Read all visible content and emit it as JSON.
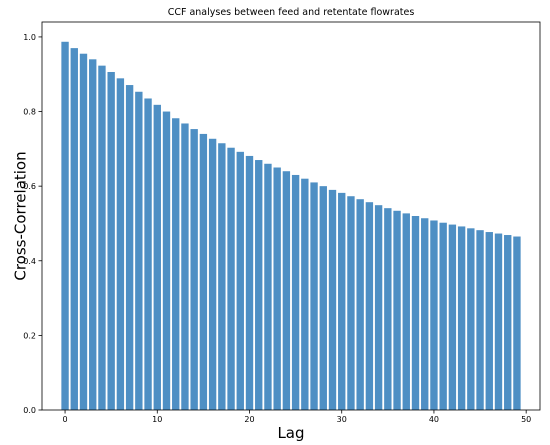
{
  "chart_data": {
    "type": "bar",
    "title": "CCF analyses between feed and retentate flowrates",
    "xlabel": "Lag",
    "ylabel": "Cross-Correlation",
    "xlim": [
      -2.5,
      51.5
    ],
    "ylim": [
      0,
      1.04
    ],
    "grid": false,
    "bar_color": "#4e8fc4",
    "x_ticks": [
      0,
      10,
      20,
      30,
      40,
      50
    ],
    "y_ticks": [
      0.0,
      0.2,
      0.4,
      0.6,
      0.8,
      1.0
    ],
    "x_tick_labels": [
      "0",
      "10",
      "20",
      "30",
      "40",
      "50"
    ],
    "y_tick_labels": [
      "0.0",
      "0.2",
      "0.4",
      "0.6",
      "0.8",
      "1.0"
    ],
    "x": [
      0,
      1,
      2,
      3,
      4,
      5,
      6,
      7,
      8,
      9,
      10,
      11,
      12,
      13,
      14,
      15,
      16,
      17,
      18,
      19,
      20,
      21,
      22,
      23,
      24,
      25,
      26,
      27,
      28,
      29,
      30,
      31,
      32,
      33,
      34,
      35,
      36,
      37,
      38,
      39,
      40,
      41,
      42,
      43,
      44,
      45,
      46,
      47,
      48,
      49
    ],
    "values": [
      0.987,
      0.97,
      0.955,
      0.94,
      0.923,
      0.906,
      0.889,
      0.871,
      0.853,
      0.835,
      0.818,
      0.8,
      0.782,
      0.768,
      0.753,
      0.74,
      0.727,
      0.715,
      0.703,
      0.692,
      0.681,
      0.67,
      0.66,
      0.65,
      0.64,
      0.63,
      0.62,
      0.61,
      0.6,
      0.59,
      0.582,
      0.573,
      0.565,
      0.557,
      0.549,
      0.541,
      0.534,
      0.527,
      0.52,
      0.514,
      0.508,
      0.502,
      0.497,
      0.492,
      0.487,
      0.482,
      0.477,
      0.473,
      0.469,
      0.465
    ]
  }
}
